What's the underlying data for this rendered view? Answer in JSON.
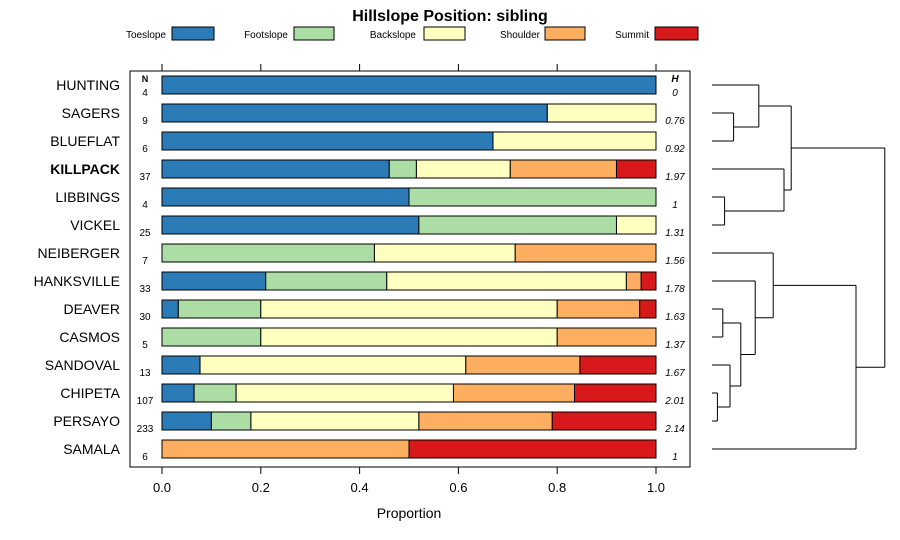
{
  "chart_data": {
    "type": "bar",
    "stacked": true,
    "orientation": "horizontal",
    "title": "Hillslope Position: sibling",
    "xlabel": "Proportion",
    "ylabel": "",
    "xlim": [
      0,
      1
    ],
    "x_ticks": [
      "0.0",
      "0.2",
      "0.4",
      "0.6",
      "0.8",
      "1.0"
    ],
    "n_header": "N",
    "h_header": "H",
    "legend_position": "top",
    "highlighted_category": "KILLPACK",
    "categories": [
      "HUNTING",
      "SAGERS",
      "BLUEFLAT",
      "KILLPACK",
      "LIBBINGS",
      "VICKEL",
      "NEIBERGER",
      "HANKSVILLE",
      "DEAVER",
      "CASMOS",
      "SANDOVAL",
      "CHIPETA",
      "PERSAYO",
      "SAMALA"
    ],
    "n": [
      "4",
      "9",
      "6",
      "37",
      "4",
      "25",
      "7",
      "33",
      "30",
      "5",
      "13",
      "107",
      "233",
      "6"
    ],
    "h": [
      "0",
      "0.76",
      "0.92",
      "1.97",
      "1",
      "1.31",
      "1.56",
      "1.78",
      "1.63",
      "1.37",
      "1.67",
      "2.01",
      "2.14",
      "1"
    ],
    "series": [
      {
        "name": "Toeslope",
        "color": "#2c7bb6",
        "values": [
          1.0,
          0.78,
          0.67,
          0.46,
          0.5,
          0.52,
          0.0,
          0.21,
          0.033,
          0.0,
          0.077,
          0.065,
          0.1,
          0.0
        ]
      },
      {
        "name": "Footslope",
        "color": "#abdda4",
        "values": [
          0.0,
          0.0,
          0.0,
          0.055,
          0.5,
          0.4,
          0.43,
          0.245,
          0.167,
          0.2,
          0.0,
          0.085,
          0.08,
          0.0
        ]
      },
      {
        "name": "Backslope",
        "color": "#ffffbf",
        "values": [
          0.0,
          0.22,
          0.33,
          0.19,
          0.0,
          0.08,
          0.285,
          0.485,
          0.6,
          0.6,
          0.538,
          0.44,
          0.34,
          0.0
        ]
      },
      {
        "name": "Shoulder",
        "color": "#fdae61",
        "values": [
          0.0,
          0.0,
          0.0,
          0.215,
          0.0,
          0.0,
          0.285,
          0.03,
          0.167,
          0.2,
          0.231,
          0.245,
          0.27,
          0.5
        ]
      },
      {
        "name": "Summit",
        "color": "#d7191c",
        "values": [
          0.0,
          0.0,
          0.0,
          0.08,
          0.0,
          0.0,
          0.0,
          0.03,
          0.033,
          0.0,
          0.154,
          0.165,
          0.21,
          0.5
        ]
      }
    ],
    "dendrogram": {
      "height_range": [
        0,
        1
      ],
      "merges": [
        [
          -2,
          -3,
          0.12
        ],
        [
          -5,
          -6,
          0.07
        ],
        [
          -9,
          -10,
          0.06
        ],
        [
          -12,
          -13,
          0.03
        ],
        [
          -11,
          4,
          0.1
        ],
        [
          3,
          5,
          0.16
        ],
        [
          -8,
          6,
          0.24
        ],
        [
          -1,
          1,
          0.26
        ],
        [
          -7,
          7,
          0.34
        ],
        [
          -4,
          2,
          0.4
        ],
        [
          -14,
          9,
          0.8
        ],
        [
          8,
          10,
          0.44
        ],
        [
          11,
          12,
          0.96
        ]
      ]
    }
  }
}
